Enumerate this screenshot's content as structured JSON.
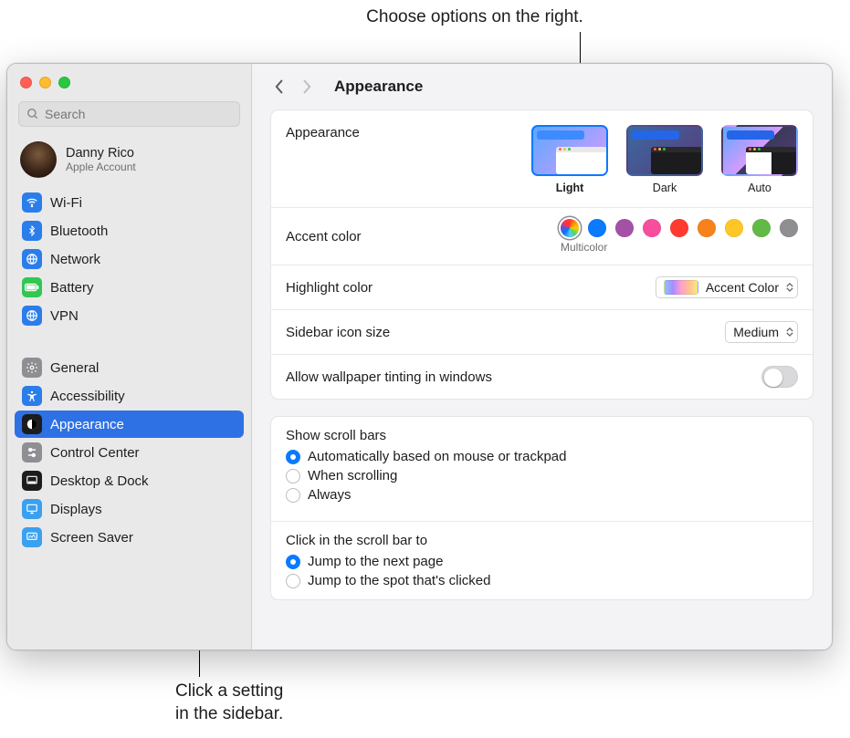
{
  "callouts": {
    "top": "Choose options on the right.",
    "bottom": "Click a setting\nin the sidebar."
  },
  "search": {
    "placeholder": "Search"
  },
  "account": {
    "name": "Danny Rico",
    "sub": "Apple Account"
  },
  "sidebar_group1": [
    {
      "label": "Wi-Fi",
      "iconClass": "ic-wifi",
      "key": "wifi"
    },
    {
      "label": "Bluetooth",
      "iconClass": "ic-bt",
      "key": "bluetooth"
    },
    {
      "label": "Network",
      "iconClass": "ic-network",
      "key": "network"
    },
    {
      "label": "Battery",
      "iconClass": "ic-battery",
      "key": "battery"
    },
    {
      "label": "VPN",
      "iconClass": "ic-vpn",
      "key": "vpn"
    }
  ],
  "sidebar_group2": [
    {
      "label": "General",
      "iconClass": "ic-general",
      "key": "general"
    },
    {
      "label": "Accessibility",
      "iconClass": "ic-a11y",
      "key": "accessibility"
    },
    {
      "label": "Appearance",
      "iconClass": "ic-appearance",
      "key": "appearance",
      "selected": true
    },
    {
      "label": "Control Center",
      "iconClass": "ic-cc",
      "key": "control-center"
    },
    {
      "label": "Desktop & Dock",
      "iconClass": "ic-desktop",
      "key": "desktop-dock"
    },
    {
      "label": "Displays",
      "iconClass": "ic-displays",
      "key": "displays"
    },
    {
      "label": "Screen Saver",
      "iconClass": "ic-ss",
      "key": "screen-saver"
    }
  ],
  "toolbar": {
    "title": "Appearance"
  },
  "appearance_section": {
    "label": "Appearance",
    "modes": [
      {
        "label": "Light",
        "thumbClass": "thumb-light",
        "selected": true
      },
      {
        "label": "Dark",
        "thumbClass": "thumb-dark"
      },
      {
        "label": "Auto",
        "thumbClass": "thumb-auto"
      }
    ]
  },
  "accent": {
    "label": "Accent color",
    "selected_name": "Multicolor",
    "colors": [
      {
        "name": "multicolor",
        "class": "swatch-multi",
        "selected": true
      },
      {
        "name": "blue",
        "hex": "#0a7aff"
      },
      {
        "name": "purple",
        "hex": "#a550a7"
      },
      {
        "name": "pink",
        "hex": "#f74f9e"
      },
      {
        "name": "red",
        "hex": "#ff3b30"
      },
      {
        "name": "orange",
        "hex": "#f7821b"
      },
      {
        "name": "yellow",
        "hex": "#ffc726"
      },
      {
        "name": "green",
        "hex": "#62ba46"
      },
      {
        "name": "graphite",
        "hex": "#8e8e93"
      }
    ]
  },
  "highlight": {
    "label": "Highlight color",
    "value": "Accent Color"
  },
  "sidebar_icon": {
    "label": "Sidebar icon size",
    "value": "Medium"
  },
  "tinting": {
    "label": "Allow wallpaper tinting in windows",
    "on": false
  },
  "scrollbars": {
    "title": "Show scroll bars",
    "options": [
      {
        "label": "Automatically based on mouse or trackpad",
        "checked": true
      },
      {
        "label": "When scrolling"
      },
      {
        "label": "Always"
      }
    ]
  },
  "scrollclick": {
    "title": "Click in the scroll bar to",
    "options": [
      {
        "label": "Jump to the next page",
        "checked": true
      },
      {
        "label": "Jump to the spot that's clicked"
      }
    ]
  },
  "colors": {
    "selection": "#2e71e5",
    "accent_blue": "#0a7aff",
    "window_bg": "#f3f2f4",
    "sidebar_bg": "#eae9ea",
    "panel_bg": "#ffffff",
    "border": "#e4e3e5"
  }
}
